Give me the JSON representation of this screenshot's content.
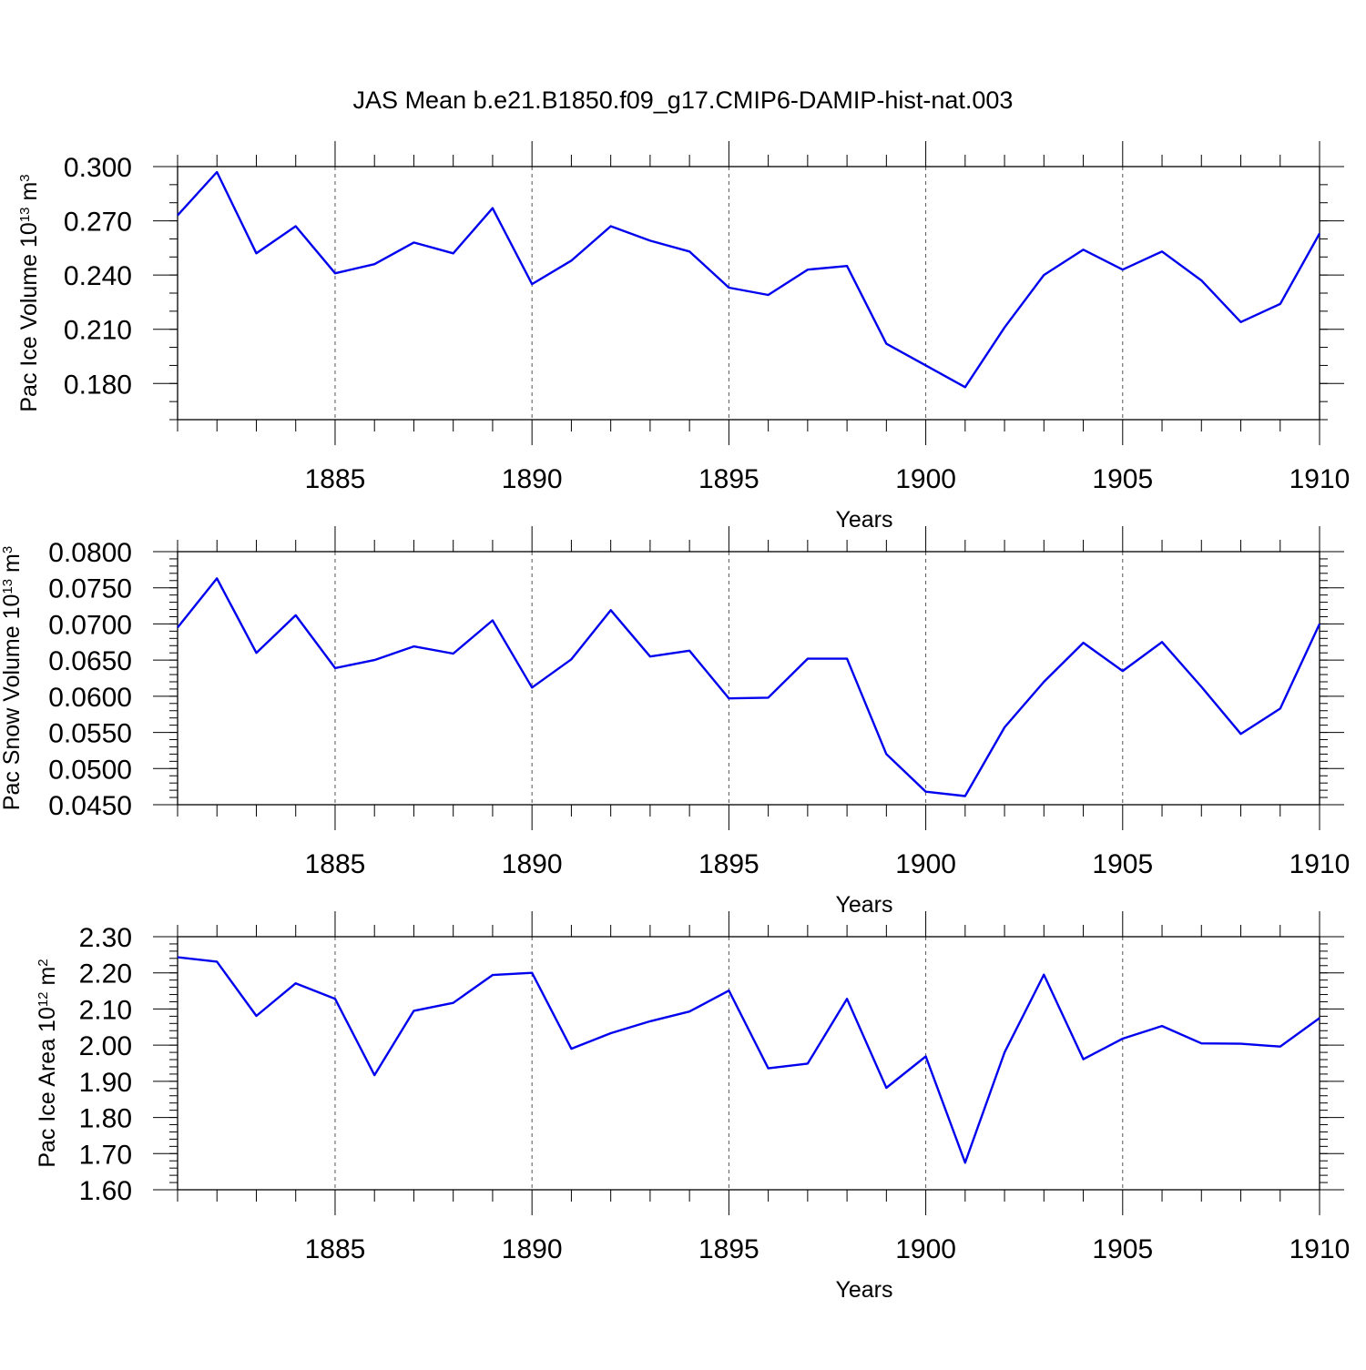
{
  "title": "JAS Mean b.e21.B1850.f09_g17.CMIP6-DAMIP-hist-nat.003",
  "colors": {
    "series": "#0000ee",
    "axis": "#000000",
    "grid": "#555555"
  },
  "chart_data": [
    {
      "type": "line",
      "name": "pac-ice-volume",
      "ylabel": "Pac Ice Volume 10",
      "ylabel_sup": "13",
      "ylabel_unit": " m",
      "ylabel_unit_sup": "3",
      "xlabel": "Years",
      "xlim": [
        1881,
        1910
      ],
      "ylim": [
        0.16,
        0.3
      ],
      "yticks": [
        0.18,
        0.21,
        0.24,
        0.27,
        0.3
      ],
      "ytick_labels": [
        "0.180",
        "0.210",
        "0.240",
        "0.270",
        "0.300"
      ],
      "yminor_step": 0.01,
      "xticks": [
        1885,
        1890,
        1895,
        1900,
        1905,
        1910
      ],
      "xtick_labels": [
        "1885",
        "1890",
        "1895",
        "1900",
        "1905",
        "1910"
      ],
      "x": [
        1881,
        1882,
        1883,
        1884,
        1885,
        1886,
        1887,
        1888,
        1889,
        1890,
        1891,
        1892,
        1893,
        1894,
        1895,
        1896,
        1897,
        1898,
        1899,
        1900,
        1901,
        1902,
        1903,
        1904,
        1905,
        1906,
        1907,
        1908,
        1909,
        1910
      ],
      "values": [
        0.273,
        0.297,
        0.252,
        0.267,
        0.241,
        0.246,
        0.258,
        0.252,
        0.277,
        0.235,
        0.248,
        0.267,
        0.259,
        0.253,
        0.233,
        0.229,
        0.243,
        0.245,
        0.202,
        0.19,
        0.178,
        0.211,
        0.24,
        0.254,
        0.243,
        0.253,
        0.237,
        0.214,
        0.224,
        0.263
      ]
    },
    {
      "type": "line",
      "name": "pac-snow-volume",
      "ylabel": "Pac Snow Volume 10",
      "ylabel_sup": "13",
      "ylabel_unit": " m",
      "ylabel_unit_sup": "3",
      "xlabel": "Years",
      "xlim": [
        1881,
        1910
      ],
      "ylim": [
        0.045,
        0.08
      ],
      "yticks": [
        0.045,
        0.05,
        0.055,
        0.06,
        0.065,
        0.07,
        0.075,
        0.08
      ],
      "ytick_labels": [
        "0.0450",
        "0.0500",
        "0.0550",
        "0.0600",
        "0.0650",
        "0.0700",
        "0.0750",
        "0.0800"
      ],
      "yminor_step": 0.001,
      "xticks": [
        1885,
        1890,
        1895,
        1900,
        1905,
        1910
      ],
      "xtick_labels": [
        "1885",
        "1890",
        "1895",
        "1900",
        "1905",
        "1910"
      ],
      "x": [
        1881,
        1882,
        1883,
        1884,
        1885,
        1886,
        1887,
        1888,
        1889,
        1890,
        1891,
        1892,
        1893,
        1894,
        1895,
        1896,
        1897,
        1898,
        1899,
        1900,
        1901,
        1902,
        1903,
        1904,
        1905,
        1906,
        1907,
        1908,
        1909,
        1910
      ],
      "values": [
        0.0695,
        0.0763,
        0.066,
        0.0712,
        0.0639,
        0.065,
        0.0669,
        0.0659,
        0.0705,
        0.0612,
        0.0651,
        0.0719,
        0.0655,
        0.0663,
        0.0597,
        0.0598,
        0.0652,
        0.0652,
        0.052,
        0.0468,
        0.0462,
        0.0557,
        0.062,
        0.0674,
        0.0635,
        0.0675,
        0.0613,
        0.0548,
        0.0583,
        0.07
      ]
    },
    {
      "type": "line",
      "name": "pac-ice-area",
      "ylabel": "Pac Ice Area 10",
      "ylabel_sup": "12",
      "ylabel_unit": " m",
      "ylabel_unit_sup": "2",
      "xlabel": "Years",
      "xlim": [
        1881,
        1910
      ],
      "ylim": [
        1.6,
        2.3
      ],
      "yticks": [
        1.6,
        1.7,
        1.8,
        1.9,
        2.0,
        2.1,
        2.2,
        2.3
      ],
      "ytick_labels": [
        "1.60",
        "1.70",
        "1.80",
        "1.90",
        "2.00",
        "2.10",
        "2.20",
        "2.30"
      ],
      "yminor_step": 0.02,
      "xticks": [
        1885,
        1890,
        1895,
        1900,
        1905,
        1910
      ],
      "xtick_labels": [
        "1885",
        "1890",
        "1895",
        "1900",
        "1905",
        "1910"
      ],
      "x": [
        1881,
        1882,
        1883,
        1884,
        1885,
        1886,
        1887,
        1888,
        1889,
        1890,
        1891,
        1892,
        1893,
        1894,
        1895,
        1896,
        1897,
        1898,
        1899,
        1900,
        1901,
        1902,
        1903,
        1904,
        1905,
        1906,
        1907,
        1908,
        1909,
        1910
      ],
      "values": [
        2.243,
        2.231,
        2.081,
        2.171,
        2.128,
        1.917,
        2.095,
        2.117,
        2.194,
        2.2,
        1.99,
        2.033,
        2.066,
        2.093,
        2.151,
        1.936,
        1.949,
        2.128,
        1.882,
        1.969,
        1.675,
        1.98,
        2.195,
        1.961,
        2.018,
        2.053,
        2.005,
        2.004,
        1.996,
        2.075
      ]
    }
  ]
}
